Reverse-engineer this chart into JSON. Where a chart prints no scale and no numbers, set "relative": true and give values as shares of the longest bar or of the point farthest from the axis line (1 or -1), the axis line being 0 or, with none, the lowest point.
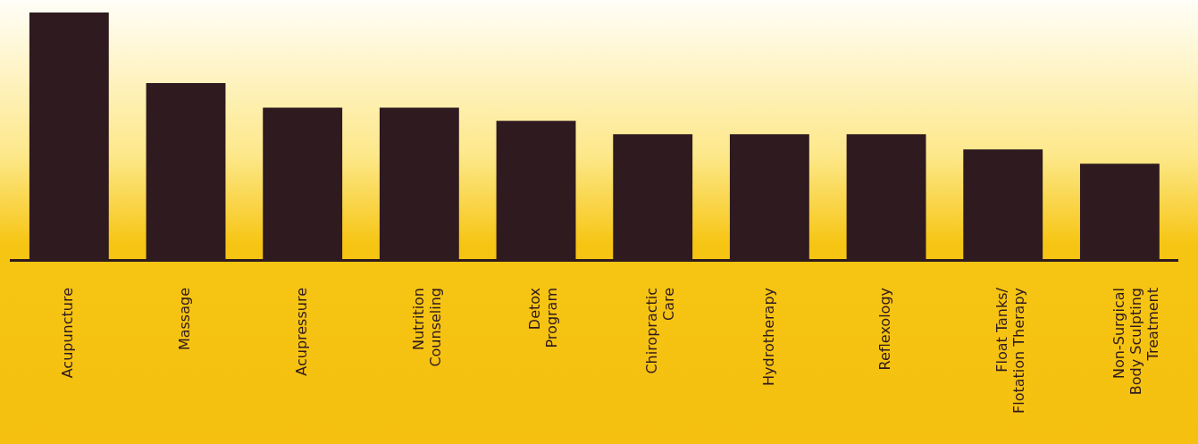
{
  "chart_data": {
    "type": "bar",
    "relative": true,
    "categories": [
      "Acupuncture",
      "Massage",
      "Acupressure",
      "Nutrition\nCounseling",
      "Detox\nProgram",
      "Chiropractic\nCare",
      "Hydrotherapy",
      "Reflexology",
      "Float Tanks/\nFlotation Therapy",
      "Non-Surgical\nBody Sculpting\nTreatment"
    ],
    "values": [
      1,
      0.716,
      0.617,
      0.617,
      0.564,
      0.51,
      0.51,
      0.51,
      0.449,
      0.391
    ],
    "color": "#2e1a1f",
    "grid": false,
    "legend": false
  }
}
